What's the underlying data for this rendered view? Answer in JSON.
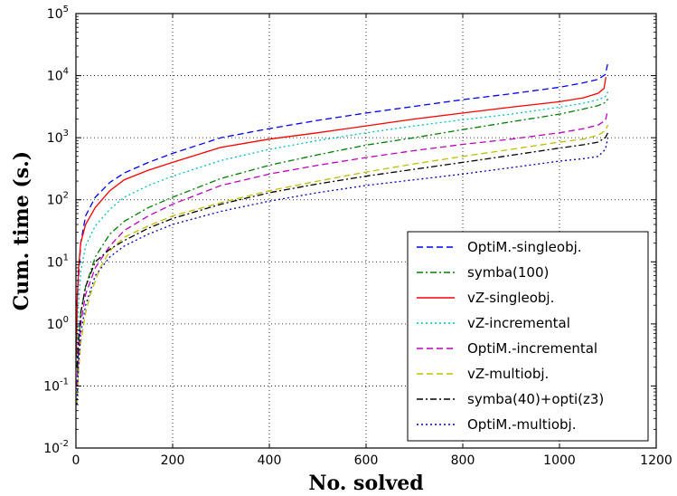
{
  "chart_data": {
    "type": "line",
    "xlabel": "No. solved",
    "ylabel": "Cum. time (s.)",
    "xlim": [
      0,
      1200
    ],
    "ylim": [
      0.01,
      100000
    ],
    "yscale": "log",
    "grid": true,
    "legend_position": "bottom-right",
    "x_ticks": [
      "0",
      "200",
      "400",
      "600",
      "800",
      "1000",
      "1200"
    ],
    "y_ticks": [
      {
        "base": "10",
        "exp": "-2"
      },
      {
        "base": "10",
        "exp": "-1"
      },
      {
        "base": "10",
        "exp": "0"
      },
      {
        "base": "10",
        "exp": "1"
      },
      {
        "base": "10",
        "exp": "2"
      },
      {
        "base": "10",
        "exp": "3"
      },
      {
        "base": "10",
        "exp": "4"
      },
      {
        "base": "10",
        "exp": "5"
      }
    ],
    "series": [
      {
        "name": "OptiM.-singleobj.",
        "color": "#0000ff",
        "dash": "7,4",
        "points": [
          [
            2,
            2
          ],
          [
            5,
            5
          ],
          [
            10,
            20
          ],
          [
            20,
            55
          ],
          [
            40,
            110
          ],
          [
            70,
            190
          ],
          [
            100,
            270
          ],
          [
            150,
            400
          ],
          [
            200,
            560
          ],
          [
            300,
            1000
          ],
          [
            400,
            1400
          ],
          [
            500,
            1900
          ],
          [
            600,
            2500
          ],
          [
            700,
            3200
          ],
          [
            800,
            4100
          ],
          [
            900,
            5100
          ],
          [
            1000,
            6500
          ],
          [
            1050,
            7700
          ],
          [
            1080,
            8700
          ],
          [
            1095,
            10500
          ],
          [
            1100,
            16000
          ]
        ]
      },
      {
        "name": "symba(100)",
        "color": "#008000",
        "dash": "7,3,2,3",
        "points": [
          [
            2,
            0.1
          ],
          [
            5,
            0.4
          ],
          [
            10,
            1.5
          ],
          [
            20,
            4
          ],
          [
            40,
            12
          ],
          [
            70,
            28
          ],
          [
            100,
            45
          ],
          [
            150,
            75
          ],
          [
            200,
            110
          ],
          [
            300,
            220
          ],
          [
            400,
            360
          ],
          [
            500,
            530
          ],
          [
            600,
            760
          ],
          [
            700,
            1000
          ],
          [
            800,
            1350
          ],
          [
            900,
            1800
          ],
          [
            1000,
            2400
          ],
          [
            1050,
            2900
          ],
          [
            1080,
            3300
          ],
          [
            1095,
            3700
          ],
          [
            1100,
            4200
          ]
        ]
      },
      {
        "name": "vZ-singleobj.",
        "color": "#ff0000",
        "dash": "",
        "points": [
          [
            1,
            0.3
          ],
          [
            3,
            3
          ],
          [
            6,
            9
          ],
          [
            10,
            20
          ],
          [
            20,
            40
          ],
          [
            40,
            75
          ],
          [
            70,
            140
          ],
          [
            100,
            210
          ],
          [
            150,
            300
          ],
          [
            200,
            400
          ],
          [
            300,
            700
          ],
          [
            400,
            950
          ],
          [
            500,
            1200
          ],
          [
            600,
            1550
          ],
          [
            700,
            2000
          ],
          [
            800,
            2500
          ],
          [
            900,
            3100
          ],
          [
            1000,
            3800
          ],
          [
            1050,
            4400
          ],
          [
            1080,
            5200
          ],
          [
            1092,
            6200
          ],
          [
            1096,
            9500
          ]
        ]
      },
      {
        "name": "vZ-incremental",
        "color": "#00bfbf",
        "dash": "2,3",
        "points": [
          [
            2,
            0.2
          ],
          [
            5,
            2
          ],
          [
            10,
            7
          ],
          [
            20,
            18
          ],
          [
            40,
            38
          ],
          [
            70,
            70
          ],
          [
            100,
            110
          ],
          [
            150,
            170
          ],
          [
            200,
            240
          ],
          [
            300,
            430
          ],
          [
            400,
            650
          ],
          [
            500,
            900
          ],
          [
            600,
            1200
          ],
          [
            700,
            1550
          ],
          [
            800,
            1950
          ],
          [
            900,
            2400
          ],
          [
            1000,
            3100
          ],
          [
            1050,
            3600
          ],
          [
            1080,
            4100
          ],
          [
            1095,
            4600
          ],
          [
            1100,
            5500
          ]
        ]
      },
      {
        "name": "OptiM.-incremental",
        "color": "#bf00bf",
        "dash": "7,4",
        "points": [
          [
            2,
            0.1
          ],
          [
            5,
            0.3
          ],
          [
            10,
            1
          ],
          [
            20,
            3
          ],
          [
            40,
            8
          ],
          [
            70,
            18
          ],
          [
            100,
            32
          ],
          [
            150,
            55
          ],
          [
            200,
            85
          ],
          [
            300,
            170
          ],
          [
            400,
            260
          ],
          [
            500,
            360
          ],
          [
            600,
            480
          ],
          [
            700,
            620
          ],
          [
            800,
            780
          ],
          [
            900,
            950
          ],
          [
            1000,
            1200
          ],
          [
            1050,
            1400
          ],
          [
            1080,
            1600
          ],
          [
            1095,
            1900
          ],
          [
            1100,
            2800
          ]
        ]
      },
      {
        "name": "vZ-multiobj.",
        "color": "#bfbf00",
        "dash": "7,4",
        "points": [
          [
            2,
            0.05
          ],
          [
            5,
            0.15
          ],
          [
            10,
            0.5
          ],
          [
            20,
            1.5
          ],
          [
            30,
            3
          ],
          [
            50,
            8
          ],
          [
            70,
            15
          ],
          [
            100,
            25
          ],
          [
            150,
            38
          ],
          [
            200,
            55
          ],
          [
            300,
            90
          ],
          [
            400,
            140
          ],
          [
            500,
            200
          ],
          [
            600,
            280
          ],
          [
            700,
            380
          ],
          [
            800,
            500
          ],
          [
            900,
            650
          ],
          [
            1000,
            850
          ],
          [
            1050,
            950
          ],
          [
            1080,
            1100
          ],
          [
            1095,
            1300
          ],
          [
            1100,
            1600
          ]
        ]
      },
      {
        "name": "symba(40)+opti(z3)",
        "color": "#000000",
        "dash": "7,3,2,3",
        "points": [
          [
            2,
            0.2
          ],
          [
            5,
            0.5
          ],
          [
            10,
            1.5
          ],
          [
            20,
            4
          ],
          [
            40,
            10
          ],
          [
            70,
            16
          ],
          [
            100,
            22
          ],
          [
            150,
            35
          ],
          [
            200,
            50
          ],
          [
            300,
            85
          ],
          [
            400,
            130
          ],
          [
            500,
            180
          ],
          [
            600,
            240
          ],
          [
            700,
            310
          ],
          [
            800,
            400
          ],
          [
            900,
            520
          ],
          [
            1000,
            680
          ],
          [
            1050,
            770
          ],
          [
            1080,
            850
          ],
          [
            1095,
            1000
          ],
          [
            1100,
            1200
          ]
        ]
      },
      {
        "name": "OptiM.-multiobj.",
        "color": "#0000bf",
        "dash": "2,3",
        "points": [
          [
            2,
            0.05
          ],
          [
            5,
            0.2
          ],
          [
            10,
            0.7
          ],
          [
            20,
            2
          ],
          [
            40,
            6
          ],
          [
            70,
            12
          ],
          [
            100,
            18
          ],
          [
            150,
            28
          ],
          [
            200,
            40
          ],
          [
            300,
            65
          ],
          [
            400,
            95
          ],
          [
            500,
            130
          ],
          [
            600,
            170
          ],
          [
            700,
            210
          ],
          [
            800,
            260
          ],
          [
            900,
            330
          ],
          [
            1000,
            420
          ],
          [
            1050,
            460
          ],
          [
            1080,
            500
          ],
          [
            1095,
            650
          ],
          [
            1100,
            1000
          ]
        ]
      }
    ]
  }
}
